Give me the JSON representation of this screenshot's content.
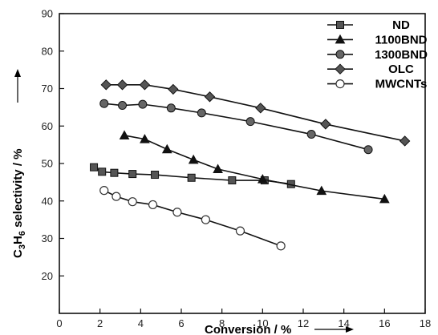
{
  "chart_data": {
    "type": "line",
    "xlabel": "Conversion / %",
    "ylabel": {
      "prefix": "C",
      "sub1": "3",
      "mid": "H",
      "sub2": "6",
      "suffix": " selectivity / %"
    },
    "xlim": [
      0,
      18
    ],
    "ylim": [
      10,
      90
    ],
    "xticks": [
      0,
      2,
      4,
      6,
      8,
      10,
      12,
      14,
      16,
      18
    ],
    "yticks": [
      20,
      30,
      40,
      50,
      60,
      70,
      80,
      90
    ],
    "grid": false,
    "legend_position": "top-right",
    "series": [
      {
        "name": "ND",
        "marker": "square",
        "fill": "#555555",
        "x": [
          1.7,
          2.1,
          2.7,
          3.6,
          4.7,
          6.5,
          8.5,
          10.1,
          11.4
        ],
        "y": [
          49,
          47.8,
          47.5,
          47.2,
          47,
          46.2,
          45.5,
          45.5,
          44.5
        ]
      },
      {
        "name": "1100BND",
        "marker": "triangle",
        "fill": "#111111",
        "x": [
          3.2,
          4.2,
          5.3,
          6.6,
          7.8,
          10.0,
          12.9,
          16.0
        ],
        "y": [
          57.5,
          56.5,
          53.8,
          51,
          48.5,
          45.8,
          42.7,
          40.5
        ]
      },
      {
        "name": "1300BND",
        "marker": "circle",
        "fill": "#666666",
        "x": [
          2.2,
          3.1,
          4.1,
          5.5,
          7.0,
          9.4,
          12.4,
          15.2
        ],
        "y": [
          66,
          65.5,
          65.8,
          64.8,
          63.5,
          61.2,
          57.8,
          53.7
        ]
      },
      {
        "name": "OLC",
        "marker": "diamond",
        "fill": "#555555",
        "x": [
          2.3,
          3.1,
          4.2,
          5.6,
          7.4,
          9.9,
          13.1,
          17.0
        ],
        "y": [
          71,
          71,
          71,
          69.8,
          67.8,
          64.8,
          60.5,
          56
        ]
      },
      {
        "name": "MWCNTs",
        "marker": "open-circle",
        "fill": "#ffffff",
        "x": [
          2.2,
          2.8,
          3.6,
          4.6,
          5.8,
          7.2,
          8.9,
          10.9
        ],
        "y": [
          42.8,
          41.2,
          39.8,
          39,
          37,
          35,
          32,
          28
        ]
      }
    ]
  }
}
